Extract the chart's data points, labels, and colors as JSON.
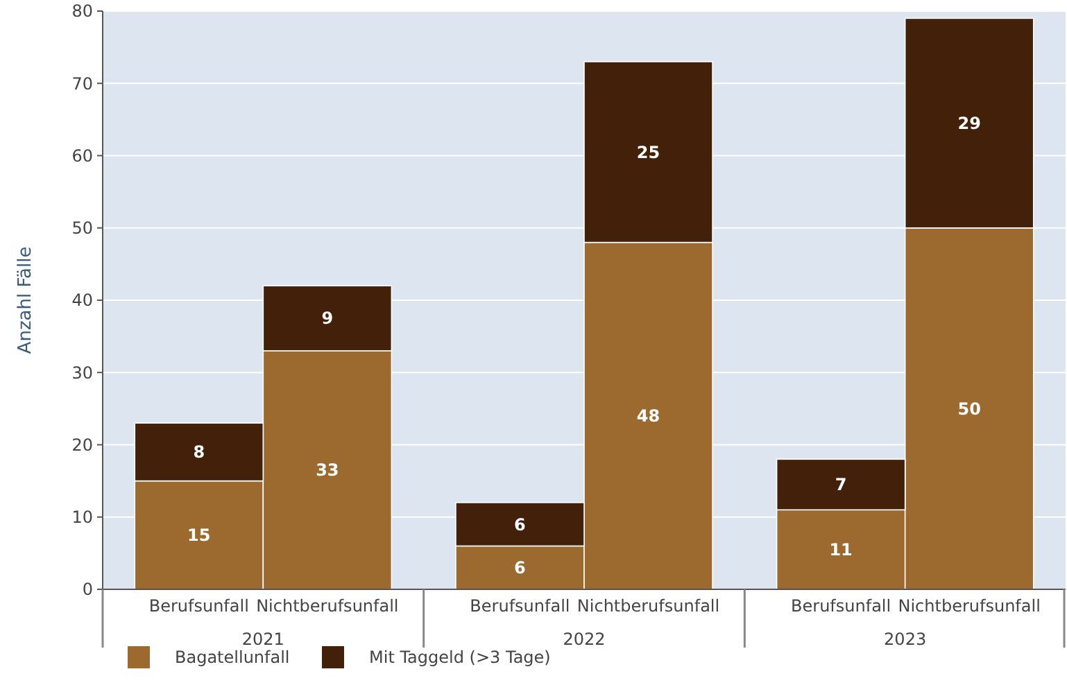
{
  "chart_data": {
    "type": "bar",
    "ylabel": "Anzahl Fälle",
    "stacked": true,
    "data_labels": true,
    "grid": "y",
    "legend": "bottom left",
    "categories": [
      "Berufsunfall",
      "Nichtberufsunfall",
      "Berufsunfall",
      "Nichtberufsunfall",
      "Berufsunfall",
      "Nichtberufsunfall"
    ],
    "annotations": [
      "2021",
      "2022",
      "2023"
    ],
    "series": [
      {
        "name": "Bagatellunfall",
        "color": "#9c6a2e",
        "values": [
          15,
          33,
          6,
          48,
          11,
          50
        ]
      },
      {
        "name": "Mit Taggeld (>3 Tage)",
        "color": "#42200a",
        "values": [
          8,
          9,
          6,
          25,
          7,
          29
        ]
      }
    ],
    "ylim": [
      0,
      80
    ],
    "yticks": [
      0,
      10,
      20,
      30,
      40,
      50,
      60,
      70,
      80
    ]
  }
}
